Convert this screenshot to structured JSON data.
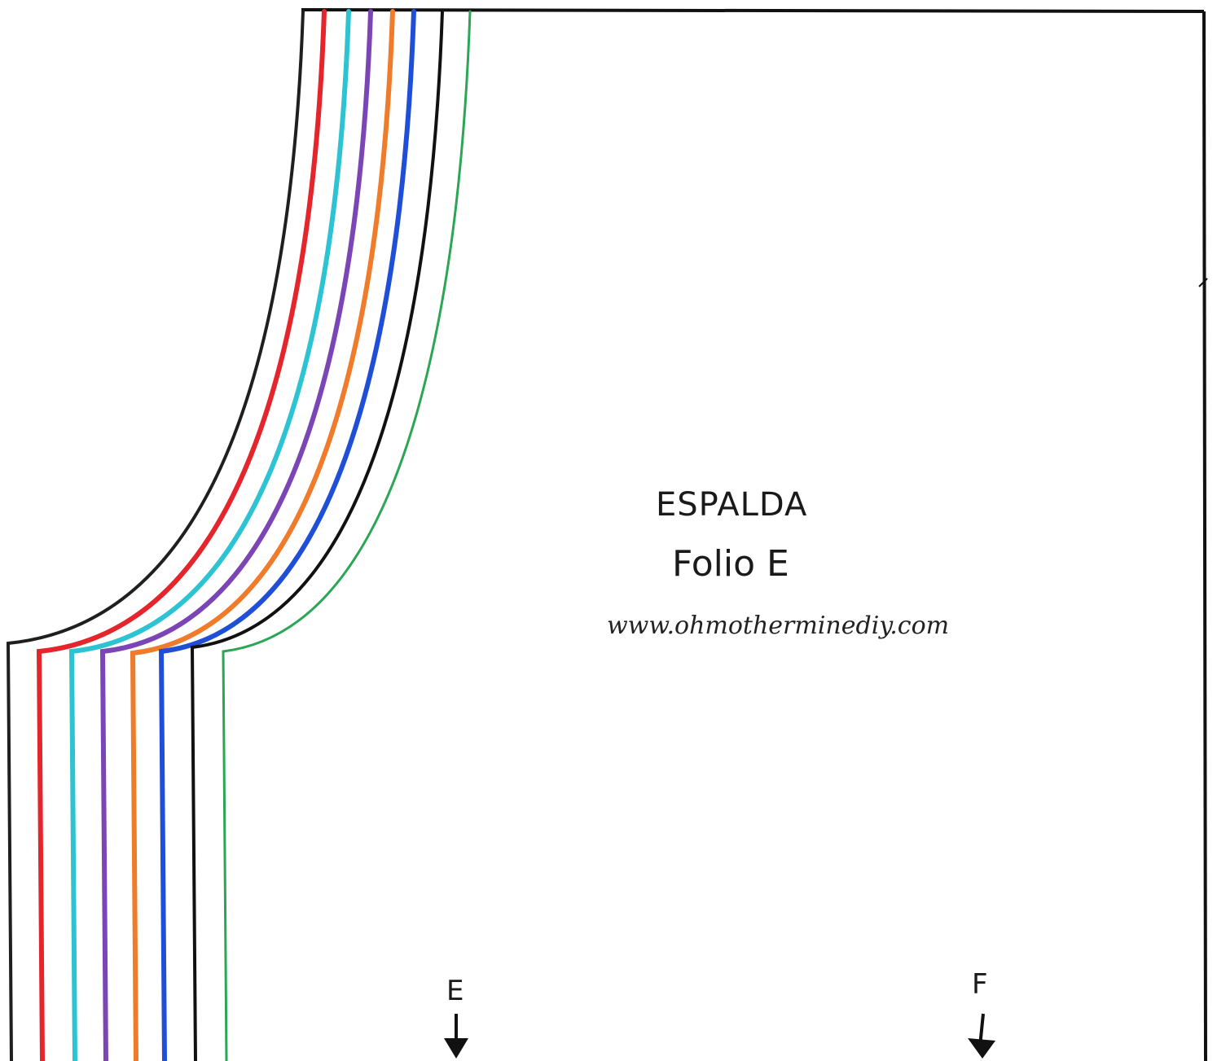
{
  "labels": {
    "title": "ESPALDA",
    "subtitle": "Folio E",
    "url": "www.ohmotherminediy.com",
    "marker_e": "E",
    "marker_f": "F"
  },
  "size_lines": [
    {
      "color": "#1f1f1f"
    },
    {
      "color": "#e4252b"
    },
    {
      "color": "#2ec3d3"
    },
    {
      "color": "#7b45b5"
    },
    {
      "color": "#f07b2a"
    },
    {
      "color": "#1f4fd6"
    },
    {
      "color": "#111111"
    },
    {
      "color": "#2aa655"
    }
  ],
  "colors": {
    "outline": "#111111",
    "background": "#ffffff"
  }
}
